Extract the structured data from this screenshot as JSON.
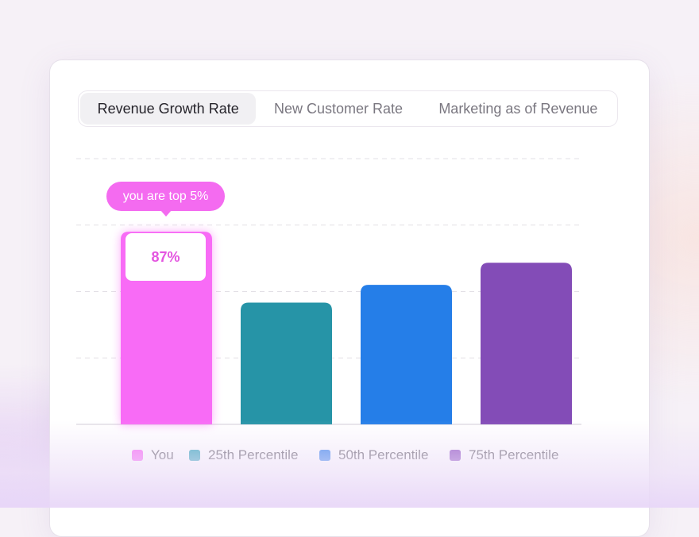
{
  "tabs": [
    {
      "label": "Revenue Growth Rate",
      "active": true
    },
    {
      "label": "New Customer Rate",
      "active": false
    },
    {
      "label": "Marketing as of Revenue",
      "active": false
    }
  ],
  "tooltip": "you are top 5%",
  "colors": {
    "you": "#f86bf6",
    "p25": "#2694a7",
    "p50": "#257ee8",
    "p75": "#834cb7",
    "grid": "#e3e0e6",
    "baseline": "#e0dde3"
  },
  "chart_data": {
    "type": "bar",
    "categories": [
      "You",
      "25th Percentile",
      "50th Percentile",
      "75th Percentile"
    ],
    "values": [
      87,
      55,
      63,
      73
    ],
    "data_labels": [
      "87%",
      "",
      "",
      ""
    ],
    "highlight": "You",
    "ylim": [
      0,
      120
    ],
    "grid": true,
    "legend_placement": "bottom",
    "legend": [
      "You",
      "25th Percentile",
      "50th Percentile",
      "75th Percentile"
    ],
    "title": "",
    "xlabel": "",
    "ylabel": ""
  }
}
